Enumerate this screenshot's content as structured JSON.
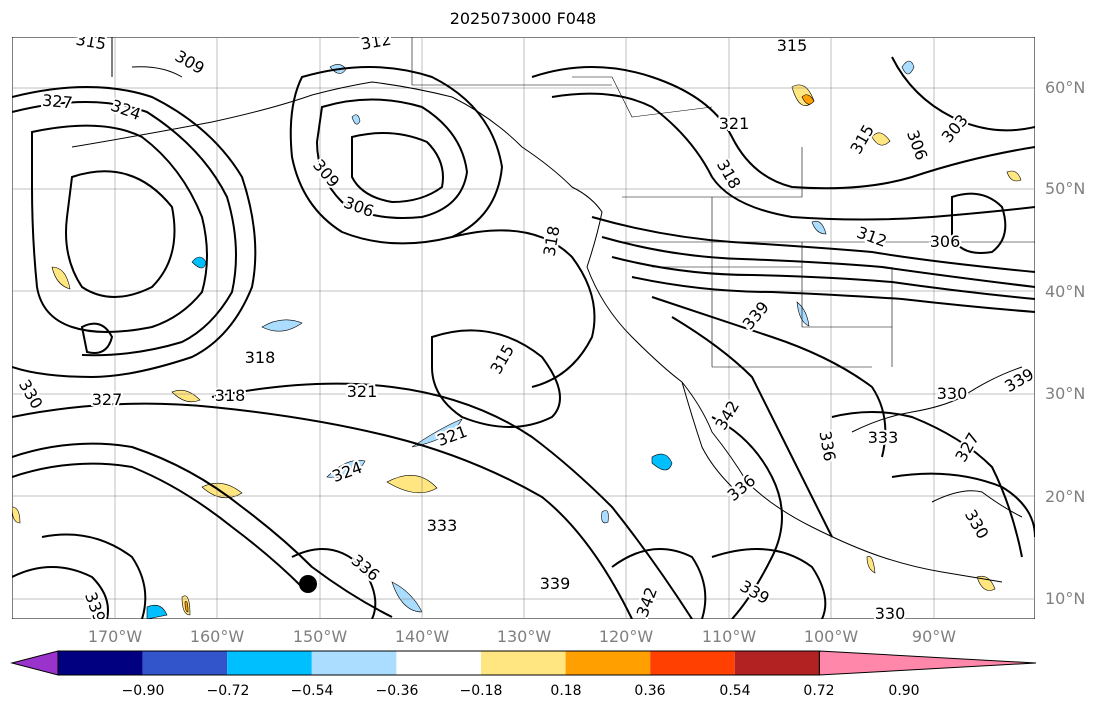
{
  "title": "2025073000 F048",
  "latitude_labels": [
    "60°N",
    "50°N",
    "40°N",
    "30°N",
    "20°N",
    "10°N"
  ],
  "longitude_labels": [
    "170°W",
    "160°W",
    "150°W",
    "140°W",
    "130°W",
    "120°W",
    "110°W",
    "100°W",
    "90°W"
  ],
  "colorbar": {
    "ticks": [
      "−0.90",
      "−0.72",
      "−0.54",
      "−0.36",
      "−0.18",
      "0.18",
      "0.36",
      "0.54",
      "0.72",
      "0.90"
    ],
    "colors": [
      "#9933cc",
      "#000080",
      "#3355cc",
      "#00bfff",
      "#aaddff",
      "#ffffff",
      "#ffe680",
      "#ffa000",
      "#ff4000",
      "#b22222",
      "#ff88aa"
    ]
  },
  "contour_labels": [
    "315",
    "309",
    "312",
    "315",
    "327",
    "324",
    "309",
    "306",
    "321",
    "318",
    "315",
    "306",
    "303",
    "318",
    "312",
    "306",
    "339",
    "318",
    "315",
    "327",
    "318",
    "321",
    "330",
    "339",
    "342",
    "333",
    "321",
    "324",
    "336",
    "336",
    "333",
    "327",
    "330",
    "339",
    "336",
    "342",
    "339",
    "330",
    "339",
    "330"
  ]
}
